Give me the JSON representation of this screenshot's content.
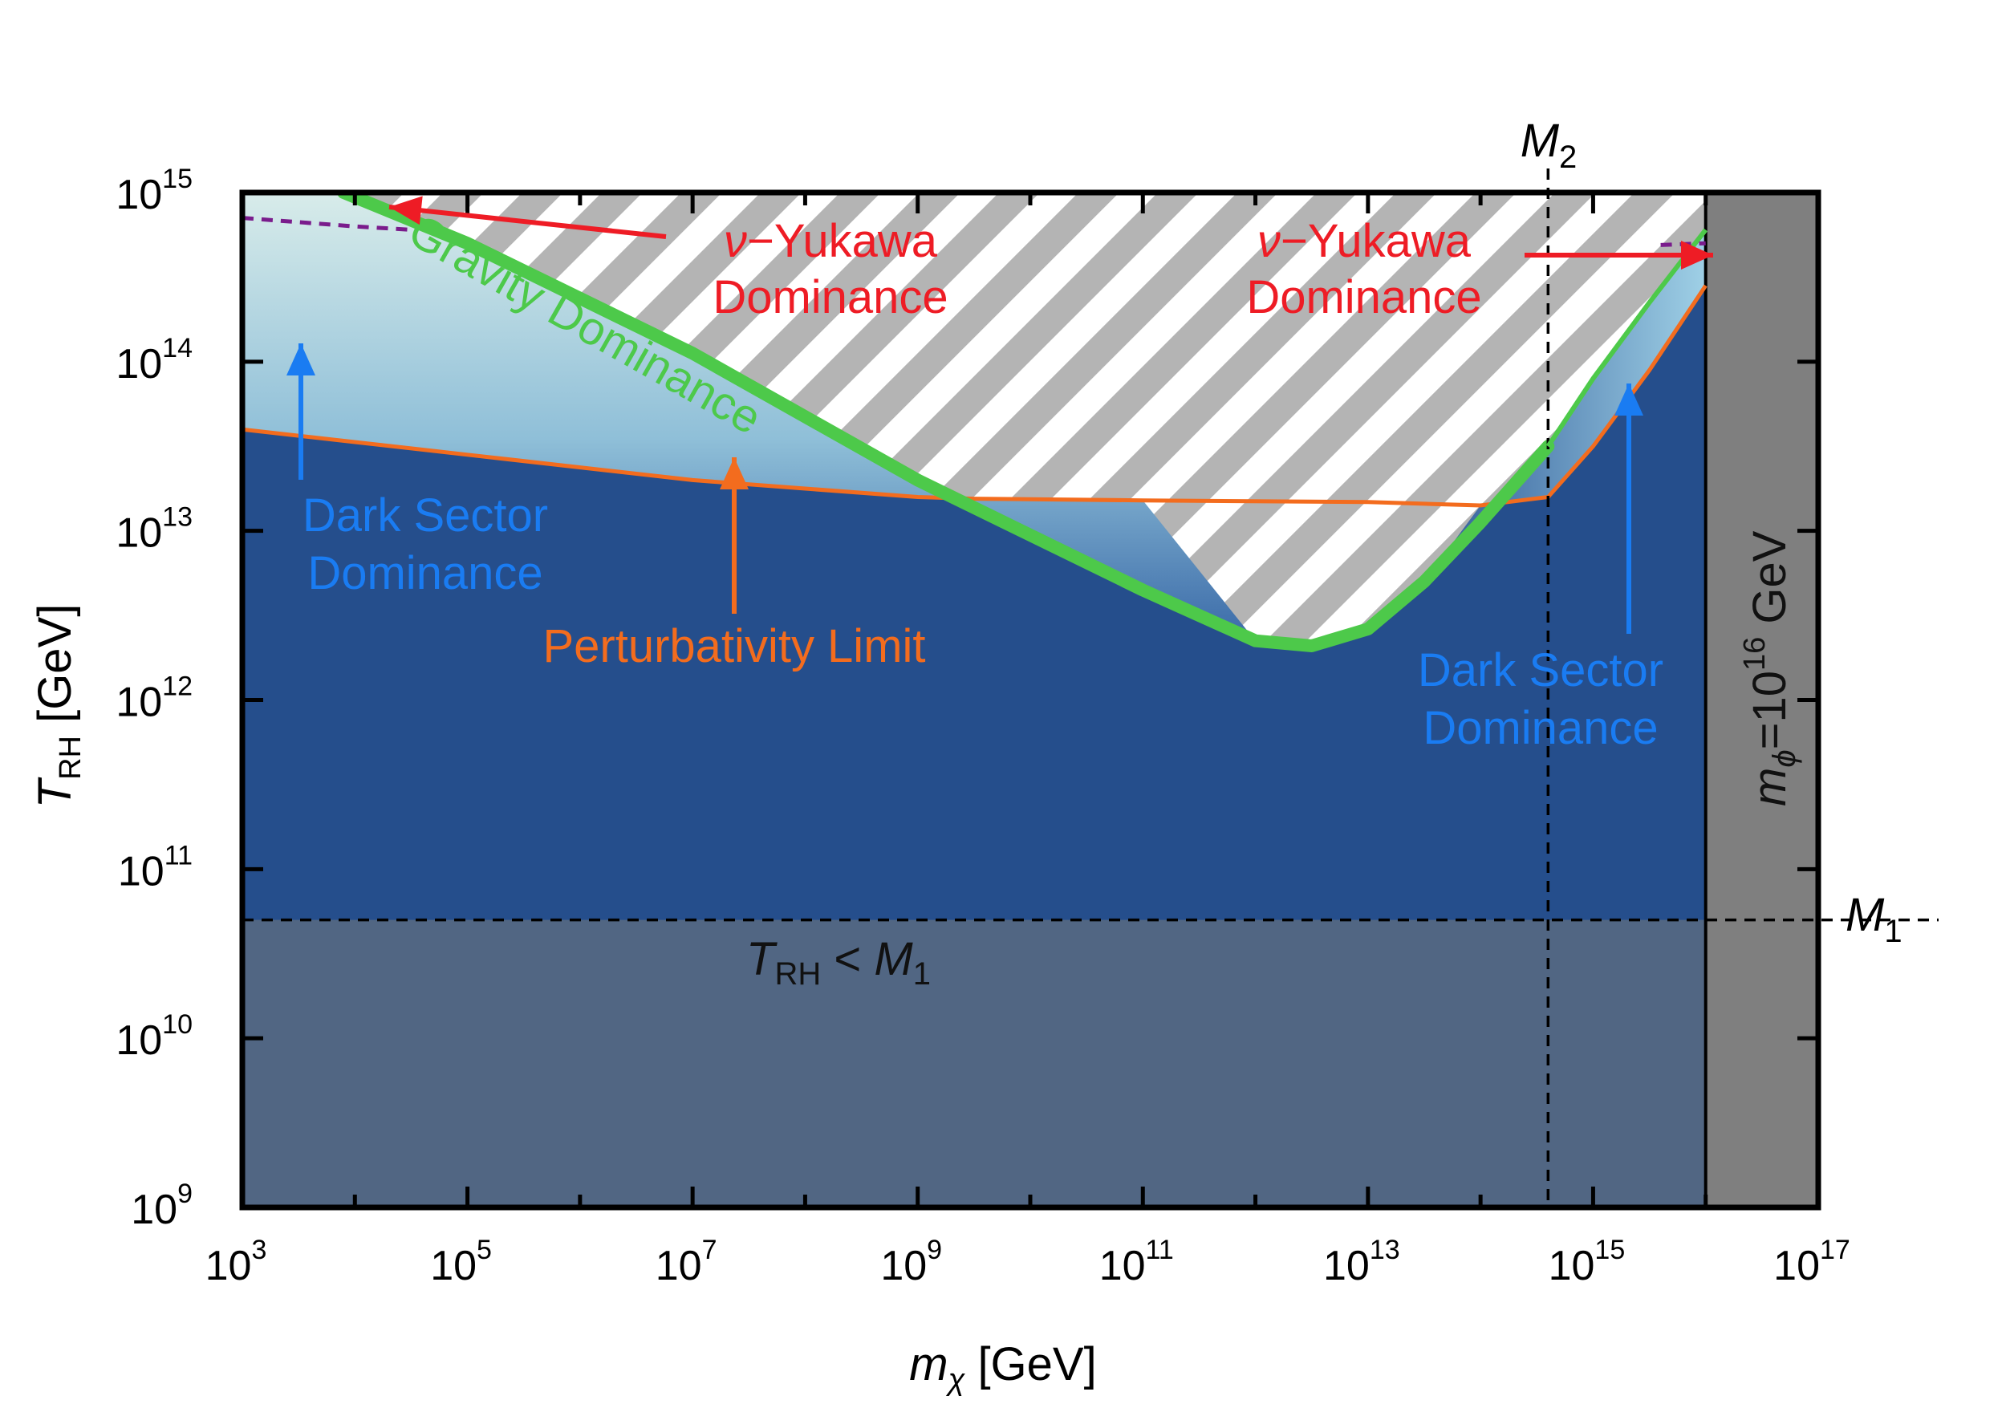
{
  "chart_data": {
    "type": "area",
    "xlabel": "m_χ [GeV]",
    "ylabel": "T_RH [GeV]",
    "x_scale": "log",
    "y_scale": "log",
    "xlim_log10": [
      3,
      17
    ],
    "ylim_log10": [
      9,
      15
    ],
    "x_tick_labels": [
      "10^3",
      "10^5",
      "10^7",
      "10^9",
      "10^11",
      "10^13",
      "10^15",
      "10^17"
    ],
    "y_tick_labels": [
      "10^9",
      "10^10",
      "10^11",
      "10^12",
      "10^13",
      "10^14",
      "10^15"
    ],
    "x_ticks_log10": [
      3,
      5,
      7,
      9,
      11,
      13,
      15,
      17
    ],
    "y_ticks_log10": [
      9,
      10,
      11,
      12,
      13,
      14,
      15
    ],
    "grid": false,
    "reference_lines": {
      "M1": {
        "label": "M",
        "subscript": "1",
        "axis": "y",
        "log10": 10.7
      },
      "M2": {
        "label": "M",
        "subscript": "2",
        "axis": "x",
        "log10": 14.6
      },
      "m_phi_log10": 16
    },
    "series": [
      {
        "name": "Gravity Dominance",
        "color": "#4dc94a",
        "points_log10": [
          [
            3.9,
            15.0
          ],
          [
            5,
            14.7
          ],
          [
            7,
            14.05
          ],
          [
            9,
            13.3
          ],
          [
            11,
            12.65
          ],
          [
            12.0,
            12.35
          ],
          [
            12.5,
            12.32
          ],
          [
            13.0,
            12.42
          ],
          [
            13.5,
            12.7
          ],
          [
            14,
            13.05
          ],
          [
            14.6,
            13.5
          ],
          [
            15,
            13.9
          ],
          [
            15.5,
            14.35
          ],
          [
            16,
            14.78
          ]
        ]
      },
      {
        "name": "Perturbativity Limit",
        "color": "#f36c1e",
        "points_log10": [
          [
            3,
            13.6
          ],
          [
            5,
            13.45
          ],
          [
            7,
            13.3
          ],
          [
            8,
            13.25
          ],
          [
            9,
            13.2
          ],
          [
            9.5,
            13.19
          ],
          [
            11,
            13.18
          ],
          [
            13,
            13.17
          ],
          [
            14,
            13.15
          ],
          [
            14.6,
            13.2
          ],
          [
            15,
            13.5
          ],
          [
            15.5,
            13.95
          ],
          [
            16,
            14.45
          ]
        ]
      },
      {
        "name": "ν-Yukawa boundary",
        "color": "#7a1c8c",
        "style": "dashed",
        "points_log10": [
          [
            3,
            14.85
          ],
          [
            4,
            14.8
          ],
          [
            4.5,
            14.78
          ]
        ]
      }
    ],
    "annotations": [
      {
        "key": "nu_yukawa_left",
        "lines": [
          "ν−Yukawa",
          "Dominance"
        ],
        "color": "#ee1c25"
      },
      {
        "key": "nu_yukawa_right",
        "lines": [
          "ν−Yukawa",
          "Dominance"
        ],
        "color": "#ee1c25"
      },
      {
        "key": "gravity",
        "text": "Gravity Dominance",
        "color": "#4dc94a"
      },
      {
        "key": "dark_left",
        "lines": [
          "Dark Sector",
          "Dominance"
        ],
        "color": "#1a7cf2"
      },
      {
        "key": "dark_right",
        "lines": [
          "Dark Sector",
          "Dominance"
        ],
        "color": "#1a7cf2"
      },
      {
        "key": "perturbativity",
        "text": "Perturbativity Limit",
        "color": "#f36c1e"
      },
      {
        "key": "trh_m1",
        "text": "T_RH < M_1",
        "color": "#111111"
      },
      {
        "key": "mphi",
        "text": "m_ϕ=10^16 GeV",
        "color": "#111111"
      }
    ],
    "colors": {
      "dark_region": "#254e8c",
      "excluded_low_trh": "#516683",
      "mphi_band": "#7f7f7f",
      "hatch_grey": "#b4b4b4",
      "light_gradient": "#bcdcec"
    }
  }
}
